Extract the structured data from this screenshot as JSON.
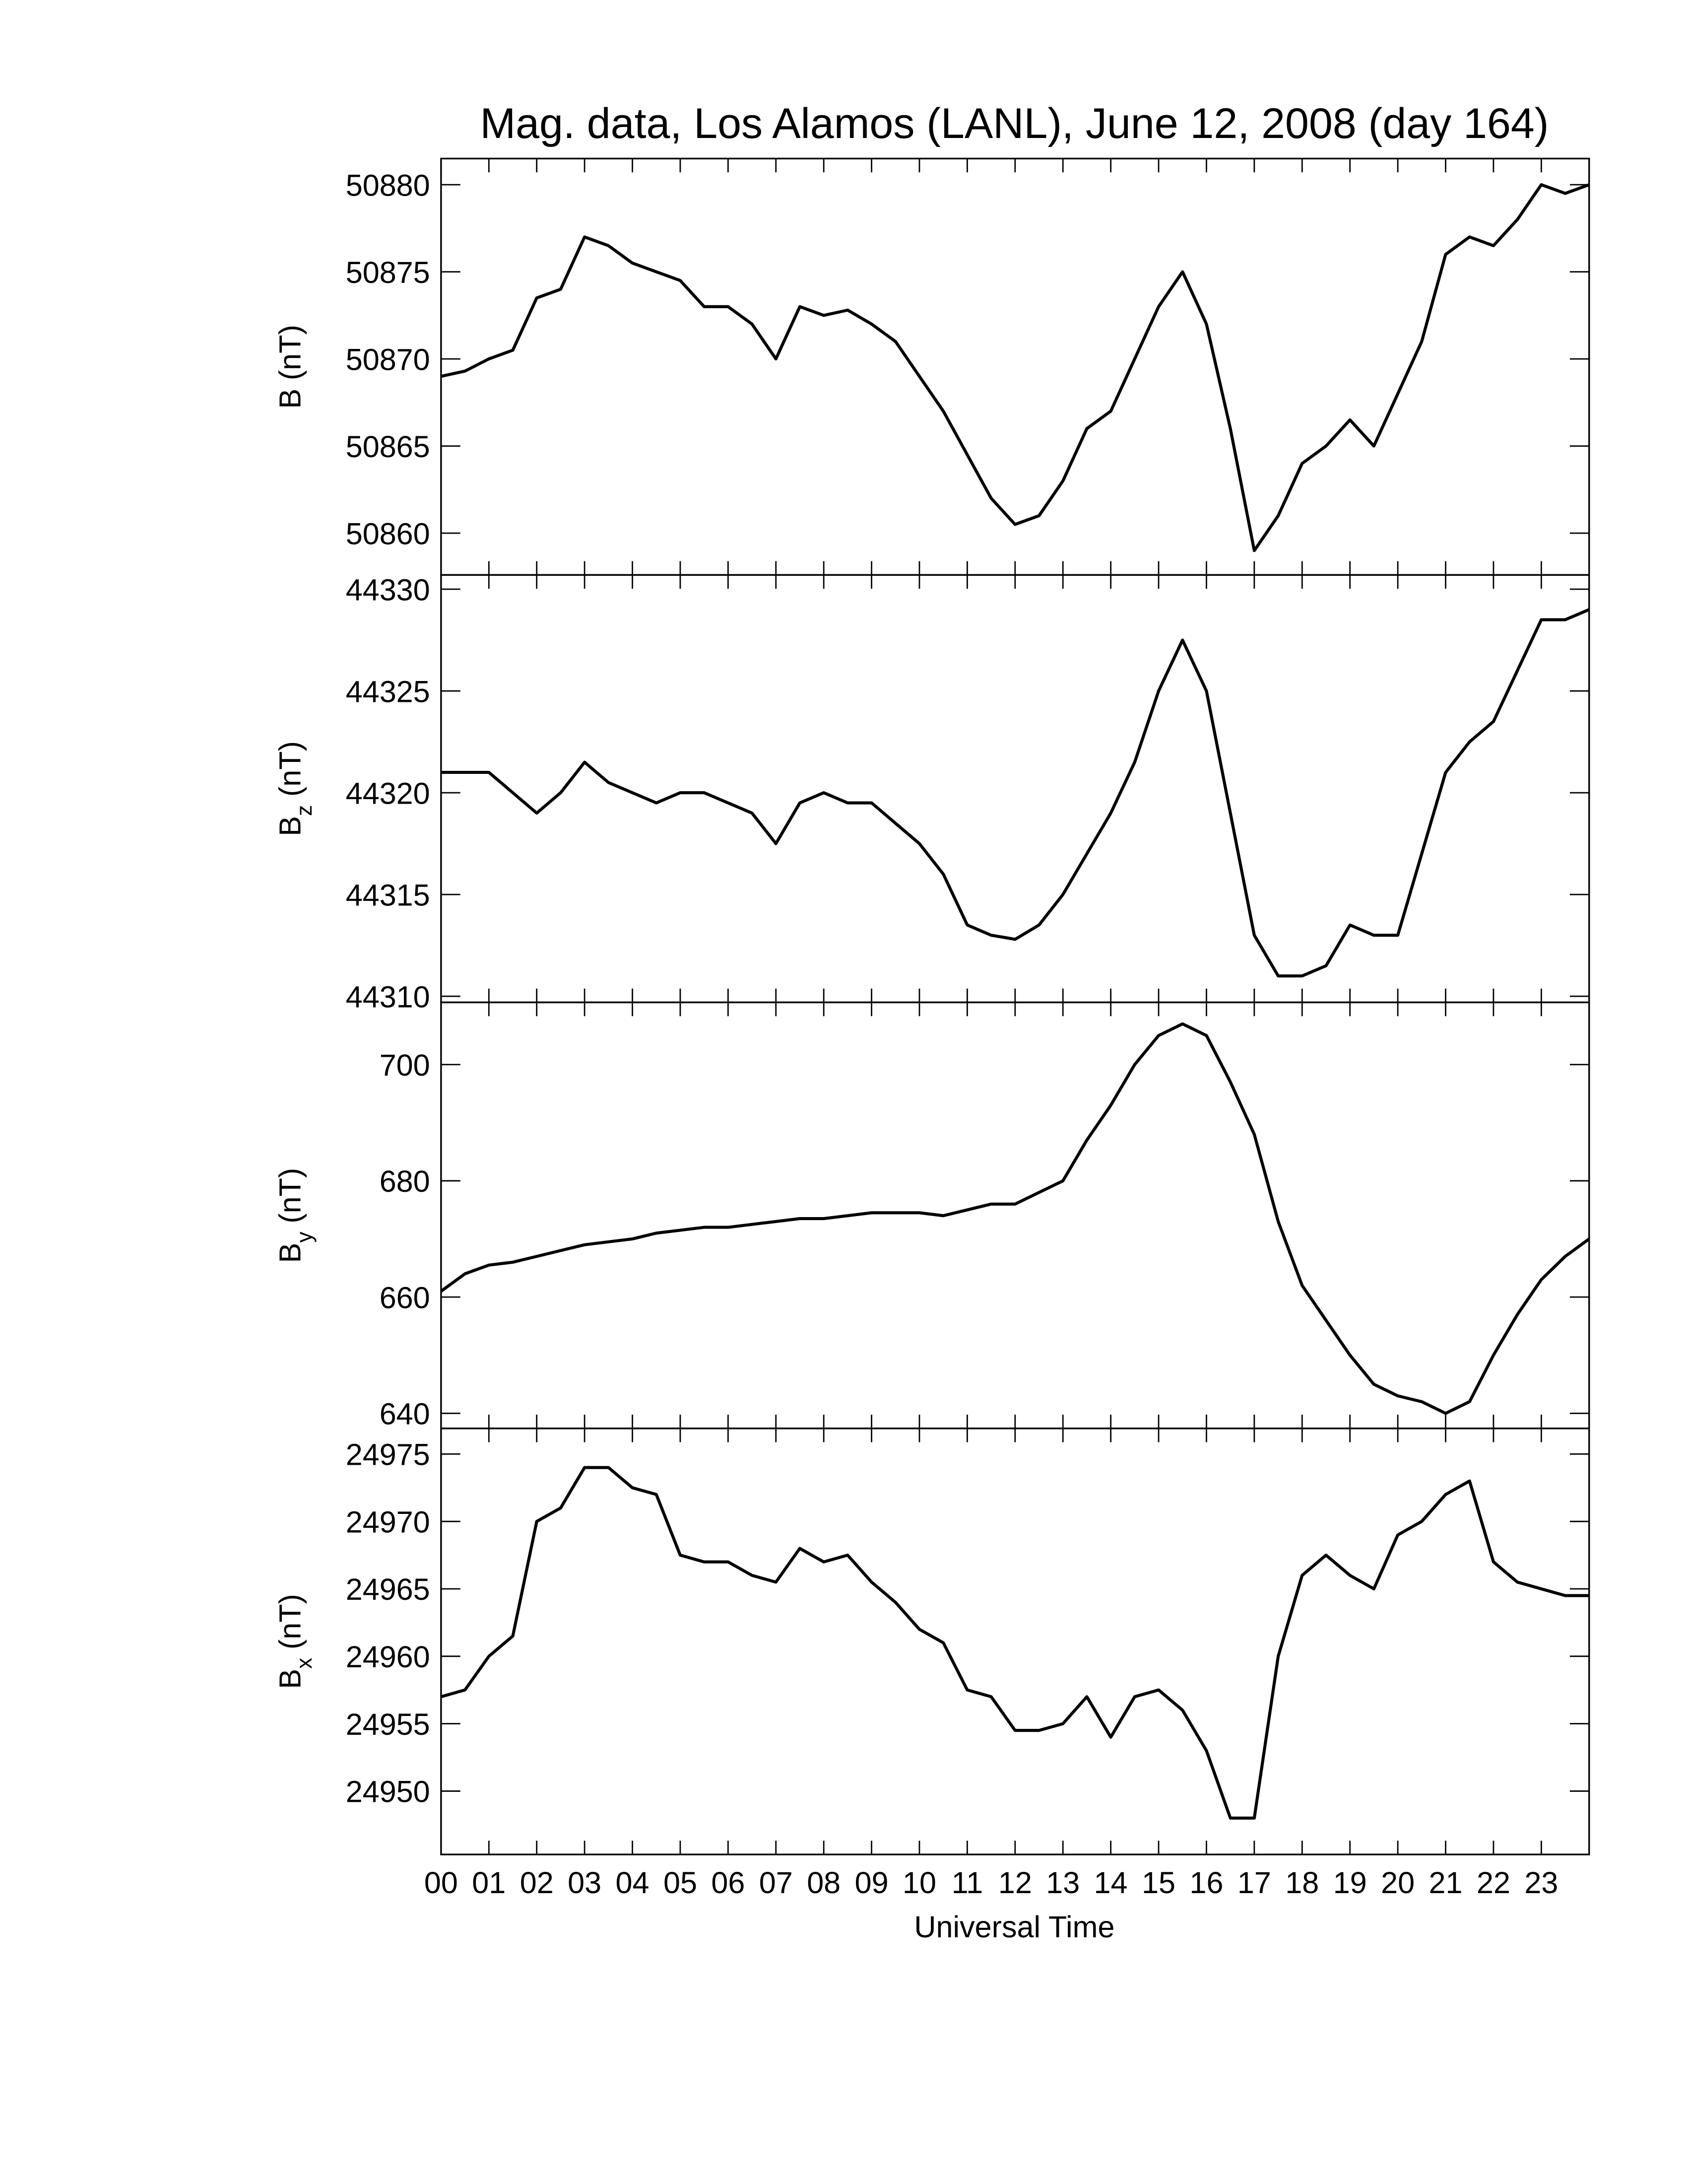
{
  "chart_data": [
    {
      "type": "line",
      "title": "Mag. data, Los Alamos (LANL), June 12, 2008 (day 164)",
      "ylabel": {
        "text": "B",
        "unit": "(nT)"
      },
      "x": [
        0,
        0.5,
        1,
        1.5,
        2,
        2.5,
        3,
        3.5,
        4,
        4.5,
        5,
        5.5,
        6,
        6.5,
        7,
        7.5,
        8,
        8.5,
        9,
        9.5,
        10,
        10.5,
        11,
        11.5,
        12,
        12.5,
        13,
        13.5,
        14,
        14.5,
        15,
        15.5,
        16,
        16.5,
        17,
        17.5,
        18,
        18.5,
        19,
        19.5,
        20,
        20.5,
        21,
        21.5,
        22,
        22.5,
        23,
        23.5,
        24
      ],
      "series": [
        {
          "color": "#000000",
          "values": [
            50869,
            50869.3,
            50870,
            50870.5,
            50873.5,
            50874,
            50877,
            50876.5,
            50875.5,
            50875,
            50874.5,
            50873,
            50873,
            50872,
            50870,
            50873,
            50872.5,
            50872.8,
            50872,
            50871,
            50869,
            50867,
            50864.5,
            50862,
            50860.5,
            50861,
            50863,
            50866,
            50867,
            50870,
            50873,
            50875,
            50872,
            50866,
            50859,
            50861,
            50864,
            50865,
            50866.5,
            50865,
            50868,
            50871,
            50876,
            50877,
            50876.5,
            50878,
            50880,
            50879.5,
            50880
          ]
        }
      ],
      "xlim": [
        0,
        24
      ],
      "ylim": [
        50857.6,
        50881.5
      ],
      "yticks": [
        50860,
        50865,
        50870,
        50875,
        50880
      ]
    },
    {
      "type": "line",
      "ylabel": {
        "text": "B",
        "sub": "z",
        "unit": "(nT)"
      },
      "x": [
        0,
        0.5,
        1,
        1.5,
        2,
        2.5,
        3,
        3.5,
        4,
        4.5,
        5,
        5.5,
        6,
        6.5,
        7,
        7.5,
        8,
        8.5,
        9,
        9.5,
        10,
        10.5,
        11,
        11.5,
        12,
        12.5,
        13,
        13.5,
        14,
        14.5,
        15,
        15.5,
        16,
        16.5,
        17,
        17.5,
        18,
        18.5,
        19,
        19.5,
        20,
        20.5,
        21,
        21.5,
        22,
        22.5,
        23,
        23.5,
        24
      ],
      "series": [
        {
          "color": "#000000",
          "values": [
            44321,
            44321,
            44321,
            44320,
            44319,
            44320,
            44321.5,
            44320.5,
            44320,
            44319.5,
            44320,
            44320,
            44319.5,
            44319,
            44317.5,
            44319.5,
            44320,
            44319.5,
            44319.5,
            44318.5,
            44317.5,
            44316,
            44313.5,
            44313,
            44312.8,
            44313.5,
            44315,
            44317,
            44319,
            44321.5,
            44325,
            44327.5,
            44325,
            44319,
            44313,
            44311,
            44311,
            44311.5,
            44313.5,
            44313,
            44313,
            44317,
            44321,
            44322.5,
            44323.5,
            44326,
            44328.5,
            44328.5,
            44329
          ]
        }
      ],
      "xlim": [
        0,
        24
      ],
      "ylim": [
        44309.7,
        44330.7
      ],
      "yticks": [
        44310,
        44315,
        44320,
        44325,
        44330
      ]
    },
    {
      "type": "line",
      "ylabel": {
        "text": "B",
        "sub": "y",
        "unit": "(nT)"
      },
      "x": [
        0,
        0.5,
        1,
        1.5,
        2,
        2.5,
        3,
        3.5,
        4,
        4.5,
        5,
        5.5,
        6,
        6.5,
        7,
        7.5,
        8,
        8.5,
        9,
        9.5,
        10,
        10.5,
        11,
        11.5,
        12,
        12.5,
        13,
        13.5,
        14,
        14.5,
        15,
        15.5,
        16,
        16.5,
        17,
        17.5,
        18,
        18.5,
        19,
        19.5,
        20,
        20.5,
        21,
        21.5,
        22,
        22.5,
        23,
        23.5,
        24
      ],
      "series": [
        {
          "color": "#000000",
          "values": [
            661,
            664,
            665.5,
            666,
            667,
            668,
            669,
            669.5,
            670,
            671,
            671.5,
            672,
            672,
            672.5,
            673,
            673.5,
            673.5,
            674,
            674.5,
            674.5,
            674.5,
            674,
            675,
            676,
            676,
            678,
            680,
            687,
            693,
            700,
            705,
            707,
            705,
            697,
            688,
            673,
            662,
            656,
            650,
            645,
            643,
            642,
            640,
            642,
            650,
            657,
            663,
            667,
            670
          ]
        }
      ],
      "xlim": [
        0,
        24
      ],
      "ylim": [
        637.4,
        710.7
      ],
      "yticks": [
        640,
        660,
        680,
        700
      ]
    },
    {
      "type": "line",
      "ylabel": {
        "text": "B",
        "sub": "x",
        "unit": "(nT)"
      },
      "xlabel": "Universal Time",
      "x": [
        0,
        0.5,
        1,
        1.5,
        2,
        2.5,
        3,
        3.5,
        4,
        4.5,
        5,
        5.5,
        6,
        6.5,
        7,
        7.5,
        8,
        8.5,
        9,
        9.5,
        10,
        10.5,
        11,
        11.5,
        12,
        12.5,
        13,
        13.5,
        14,
        14.5,
        15,
        15.5,
        16,
        16.5,
        17,
        17.5,
        18,
        18.5,
        19,
        19.5,
        20,
        20.5,
        21,
        21.5,
        22,
        22.5,
        23,
        23.5,
        24
      ],
      "series": [
        {
          "color": "#000000",
          "values": [
            24957,
            24957.5,
            24960,
            24961.5,
            24970,
            24971,
            24974,
            24974,
            24972.5,
            24972,
            24967.5,
            24967,
            24967,
            24966,
            24965.5,
            24968,
            24967,
            24967.5,
            24965.5,
            24964,
            24962,
            24961,
            24957.5,
            24957,
            24954.5,
            24954.5,
            24955,
            24957,
            24954,
            24957,
            24957.5,
            24956,
            24953,
            24948,
            24948,
            24960,
            24966,
            24967.5,
            24966,
            24965,
            24969,
            24970,
            24972,
            24973,
            24967,
            24965.5,
            24965,
            24964.5,
            24964.5
          ]
        }
      ],
      "xlim": [
        0,
        24
      ],
      "ylim": [
        24945.3,
        24976.9
      ],
      "yticks": [
        24950,
        24955,
        24960,
        24965,
        24970,
        24975
      ],
      "xticks": [
        {
          "value": 0,
          "label": "00"
        },
        {
          "value": 1,
          "label": "01"
        },
        {
          "value": 2,
          "label": "02"
        },
        {
          "value": 3,
          "label": "03"
        },
        {
          "value": 4,
          "label": "04"
        },
        {
          "value": 5,
          "label": "05"
        },
        {
          "value": 6,
          "label": "06"
        },
        {
          "value": 7,
          "label": "07"
        },
        {
          "value": 8,
          "label": "08"
        },
        {
          "value": 9,
          "label": "09"
        },
        10,
        11,
        12,
        13,
        14,
        15,
        16,
        17,
        18,
        19,
        20,
        21,
        22,
        23
      ]
    }
  ]
}
